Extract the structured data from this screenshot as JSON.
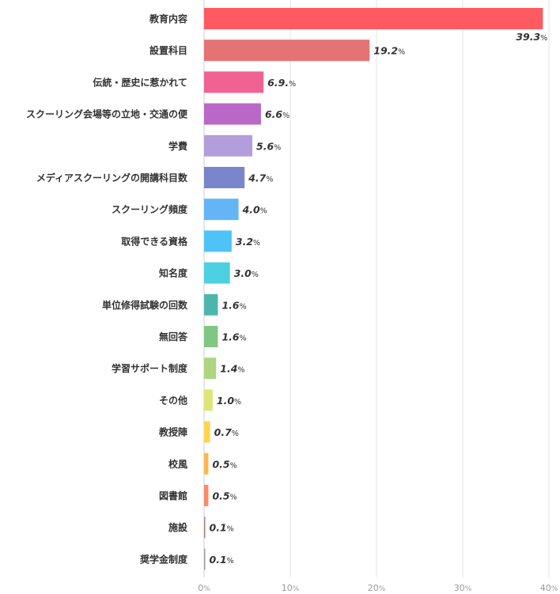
{
  "chart_data": {
    "type": "bar",
    "orientation": "horizontal",
    "value_unit": "%",
    "xlim": [
      0,
      40
    ],
    "xticks": [
      0,
      10,
      20,
      30,
      40
    ],
    "grid": true,
    "bars": [
      {
        "category": "教育内容",
        "value": 39.3,
        "label": "39.3",
        "color": "#ff5a5f"
      },
      {
        "category": "設置科目",
        "value": 19.2,
        "label": "19.2",
        "color": "#e57373"
      },
      {
        "category": "伝統・歴史に惹かれて",
        "value": 6.9,
        "label": "6.9.",
        "color": "#f06292"
      },
      {
        "category": "スクーリング会場等の立地・交通の便",
        "value": 6.6,
        "label": "6.6",
        "color": "#ba68c8"
      },
      {
        "category": "学費",
        "value": 5.6,
        "label": "5.6",
        "color": "#b39ddb"
      },
      {
        "category": "メディアスクーリングの開講科目数",
        "value": 4.7,
        "label": "4.7",
        "color": "#7986cb"
      },
      {
        "category": "スクーリング頻度",
        "value": 4.0,
        "label": "4.0",
        "color": "#64b5f6"
      },
      {
        "category": "取得できる資格",
        "value": 3.2,
        "label": "3.2",
        "color": "#4fc3f7"
      },
      {
        "category": "知名度",
        "value": 3.0,
        "label": "3.0",
        "color": "#4dd0e1"
      },
      {
        "category": "単位修得試験の回数",
        "value": 1.6,
        "label": "1.6",
        "color": "#4db6ac"
      },
      {
        "category": "無回答",
        "value": 1.6,
        "label": "1.6",
        "color": "#81c784"
      },
      {
        "category": "学習サポート制度",
        "value": 1.4,
        "label": "1.4",
        "color": "#aed581"
      },
      {
        "category": "その他",
        "value": 1.0,
        "label": "1.0",
        "color": "#dce775"
      },
      {
        "category": "教授陣",
        "value": 0.7,
        "label": "0.7",
        "color": "#ffd54f"
      },
      {
        "category": "校風",
        "value": 0.5,
        "label": "0.5",
        "color": "#ffb74d"
      },
      {
        "category": "図書館",
        "value": 0.5,
        "label": "0.5",
        "color": "#ff8a65"
      },
      {
        "category": "施設",
        "value": 0.1,
        "label": "0.1",
        "color": "#a1887f"
      },
      {
        "category": "奨学金制度",
        "value": 0.1,
        "label": "0.1",
        "color": "#9e9e9e"
      }
    ]
  }
}
